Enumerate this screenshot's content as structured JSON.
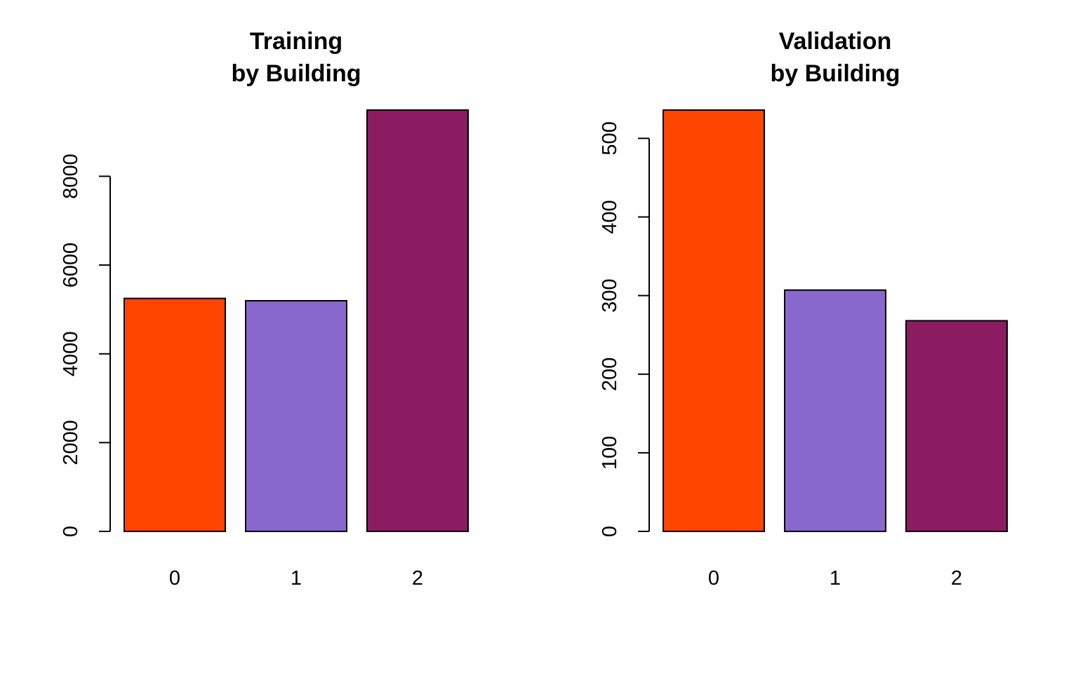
{
  "chart_data": [
    {
      "type": "bar",
      "title_lines": [
        "Training",
        "by Building"
      ],
      "categories": [
        "0",
        "1",
        "2"
      ],
      "values": [
        5249,
        5196,
        9492
      ],
      "colors": [
        "#ff4500",
        "#8968cd",
        "#8b1c62"
      ],
      "yticks": [
        0,
        2000,
        4000,
        6000,
        8000
      ],
      "ylim": [
        0,
        9492
      ],
      "xlabel": "",
      "ylabel": "",
      "grid": false
    },
    {
      "type": "bar",
      "title_lines": [
        "Validation",
        "by Building"
      ],
      "categories": [
        "0",
        "1",
        "2"
      ],
      "values": [
        536,
        307,
        268
      ],
      "colors": [
        "#ff4500",
        "#8968cd",
        "#8b1c62"
      ],
      "yticks": [
        0,
        100,
        200,
        300,
        400,
        500
      ],
      "ylim": [
        0,
        536
      ],
      "xlabel": "",
      "ylabel": "",
      "grid": false
    }
  ]
}
